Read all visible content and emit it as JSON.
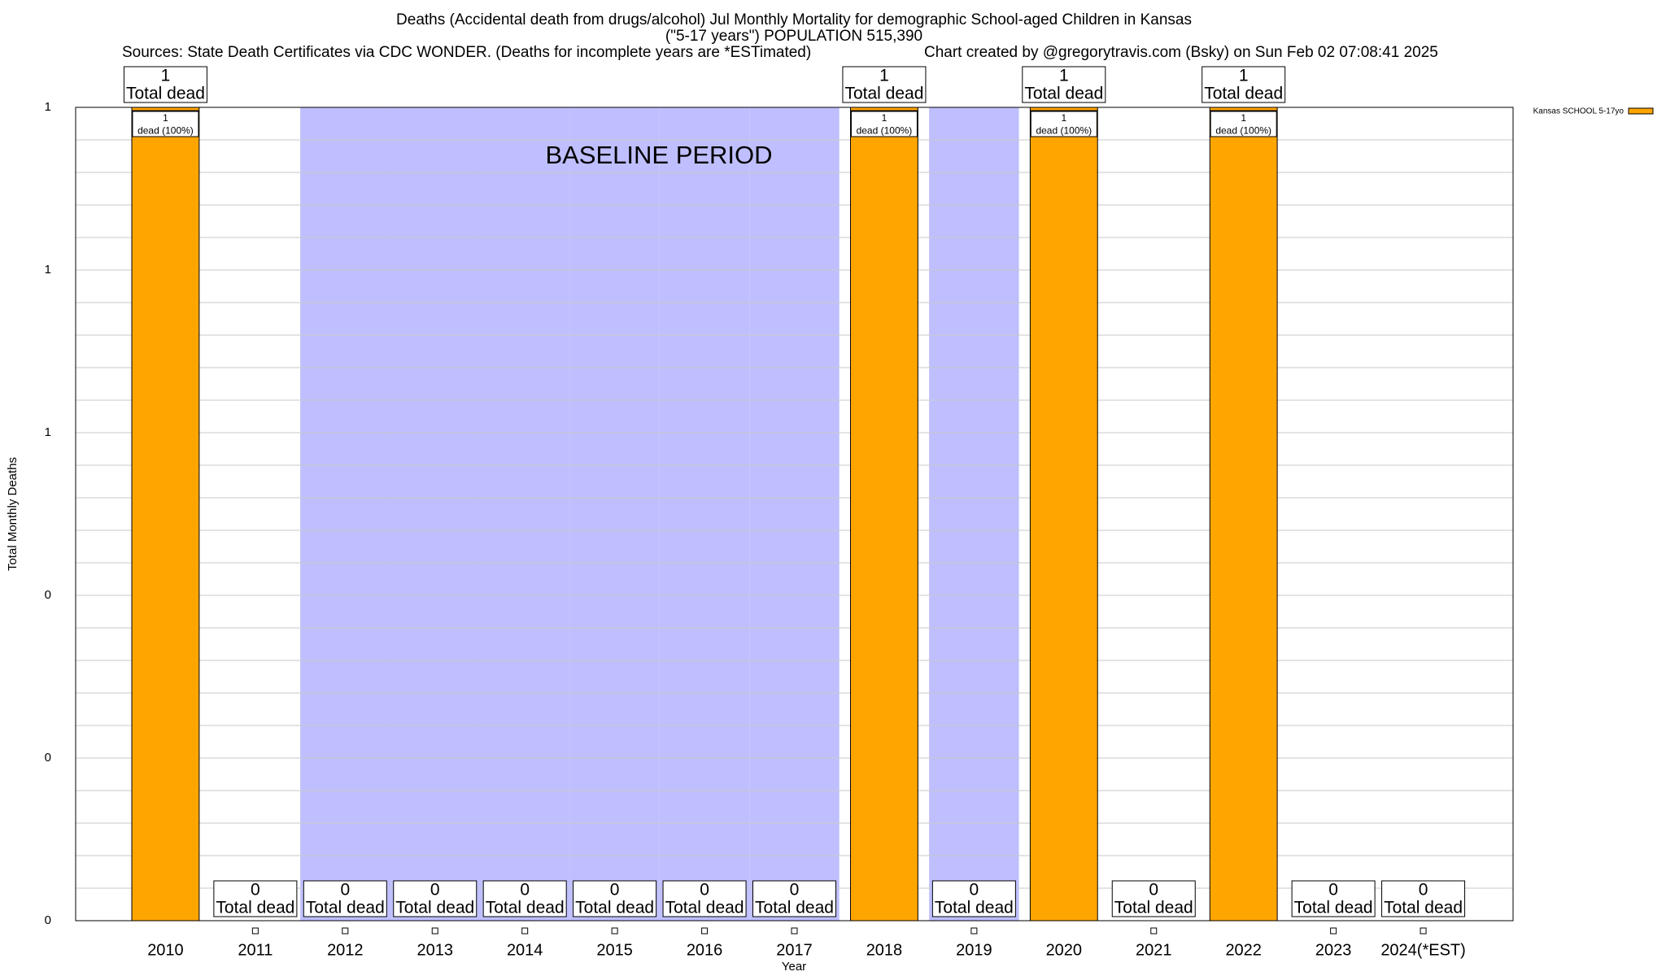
{
  "chart_data": {
    "type": "bar",
    "title": "Deaths (Accidental death from drugs/alcohol) Jul Monthly Mortality for demographic School-aged Children in Kansas",
    "subtitle": "(\"5-17 years\") POPULATION 515,390",
    "sources": "Sources: State Death Certificates via CDC WONDER. (Deaths for incomplete years are *ESTimated)",
    "credit": "Chart created by @gregorytravis.com (Bsky) on Sun Feb 02 07:08:41 2025",
    "x_label": "Year",
    "y_label": "Total Monthly Deaths",
    "categories": [
      "2010",
      "2011",
      "2012",
      "2013",
      "2014",
      "2015",
      "2016",
      "2017",
      "2018",
      "2019",
      "2020",
      "2021",
      "2022",
      "2023",
      "2024(*EST)"
    ],
    "series": [
      {
        "name": "Kansas SCHOOL 5-17yo",
        "color": "#ffa500",
        "values": [
          1,
          0,
          0,
          0,
          0,
          0,
          0,
          0,
          1,
          0,
          1,
          0,
          1,
          0,
          0
        ]
      }
    ],
    "total_label": "Total dead",
    "share_labels": [
      "dead (100%)",
      null,
      null,
      null,
      null,
      null,
      null,
      null,
      "dead (100%)",
      null,
      "dead (100%)",
      null,
      "dead (100%)",
      null,
      null
    ],
    "baseline": {
      "label": "BASELINE PERIOD",
      "color": "#bfbfff",
      "categories": [
        "2012",
        "2013",
        "2014",
        "2015",
        "2016",
        "2017",
        "2019"
      ]
    },
    "ylim": [
      0,
      1
    ],
    "yticks": [
      0,
      {
        "value": 0.2,
        "label": "0"
      },
      {
        "value": 0.4,
        "label": "0"
      },
      {
        "value": 0.6,
        "label": "1"
      },
      {
        "value": 0.8,
        "label": "1"
      },
      1
    ],
    "grid": true,
    "legend": "top-right"
  }
}
